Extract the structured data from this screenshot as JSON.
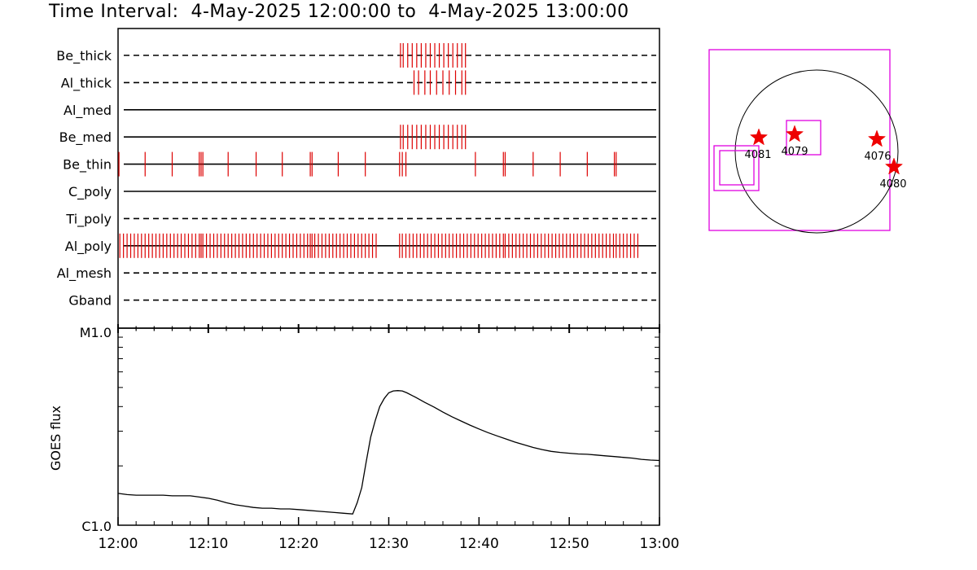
{
  "header": {
    "title": "Time Interval:  4-May-2025 12:00:00 to  4-May-2025 13:00:00"
  },
  "colors": {
    "event_mark": "#dd0000",
    "box": "#e000e0",
    "star": "#ee0000",
    "axis": "#000000"
  },
  "chart_data": [
    {
      "type": "timeline",
      "name": "filter-timeline",
      "x_range_minutes": [
        0,
        60
      ],
      "rows": [
        {
          "label": "Be_thick",
          "style": "dashed",
          "events": [
            31.3,
            31.6,
            32.1,
            32.6,
            33.1,
            33.6,
            34.1,
            34.6,
            35.1,
            35.6,
            36.1,
            36.6,
            37.1,
            37.6,
            38.1,
            38.5
          ]
        },
        {
          "label": "Al_thick",
          "style": "dashed",
          "events": [
            32.8,
            33.3,
            34.0,
            34.6,
            35.3,
            36.0,
            36.7,
            37.4,
            38.1,
            38.5
          ]
        },
        {
          "label": "Al_med",
          "style": "solid",
          "events": []
        },
        {
          "label": "Be_med",
          "style": "solid",
          "events": [
            31.3,
            31.6,
            32.1,
            32.6,
            33.1,
            33.6,
            34.1,
            34.6,
            35.1,
            35.6,
            36.1,
            36.6,
            37.1,
            37.6,
            38.1,
            38.5
          ]
        },
        {
          "label": "Be_thin",
          "style": "solid",
          "events": [
            0.1,
            3.0,
            6.0,
            9.0,
            9.2,
            9.4,
            12.2,
            15.3,
            18.2,
            21.3,
            21.5,
            24.4,
            27.4,
            31.2,
            31.5,
            31.9,
            39.6,
            42.7,
            42.9,
            46.0,
            49.0,
            52.0,
            55.0,
            55.2
          ]
        },
        {
          "label": "C_poly",
          "style": "solid",
          "events": []
        },
        {
          "label": "Ti_poly",
          "style": "dashed",
          "events": []
        },
        {
          "label": "Al_poly",
          "style": "solid",
          "events": [
            0.2,
            0.6,
            1.0,
            1.4,
            1.8,
            2.2,
            2.6,
            3.0,
            3.4,
            3.8,
            4.2,
            4.6,
            5.0,
            5.4,
            5.8,
            6.2,
            6.6,
            7.0,
            7.4,
            7.8,
            8.2,
            8.6,
            9.0,
            9.2,
            9.4,
            9.8,
            10.2,
            10.6,
            11.0,
            11.4,
            11.8,
            12.2,
            12.6,
            13.0,
            13.4,
            13.8,
            14.2,
            14.6,
            15.0,
            15.4,
            15.8,
            16.2,
            16.6,
            17.0,
            17.4,
            17.8,
            18.2,
            18.6,
            19.0,
            19.4,
            19.8,
            20.2,
            20.6,
            21.0,
            21.3,
            21.5,
            21.8,
            22.2,
            22.6,
            23.0,
            23.4,
            23.8,
            24.2,
            24.6,
            25.0,
            25.4,
            25.8,
            26.2,
            26.6,
            27.0,
            27.4,
            27.8,
            28.2,
            28.6,
            31.2,
            31.5,
            31.9,
            32.3,
            32.7,
            33.1,
            33.5,
            33.9,
            34.3,
            34.7,
            35.1,
            35.5,
            35.9,
            36.3,
            36.7,
            37.1,
            37.5,
            37.9,
            38.3,
            38.7,
            39.1,
            39.5,
            39.9,
            40.3,
            40.7,
            41.1,
            41.5,
            41.9,
            42.3,
            42.7,
            42.9,
            43.3,
            43.7,
            44.1,
            44.5,
            44.9,
            45.3,
            45.7,
            46.1,
            46.5,
            46.9,
            47.3,
            47.7,
            48.1,
            48.5,
            48.9,
            49.3,
            49.7,
            50.1,
            50.5,
            50.9,
            51.3,
            51.7,
            52.1,
            52.5,
            52.9,
            53.3,
            53.7,
            54.1,
            54.5,
            54.9,
            55.2,
            55.6,
            56.0,
            56.4,
            56.8,
            57.2,
            57.6
          ]
        },
        {
          "label": "Al_mesh",
          "style": "dashed",
          "events": []
        },
        {
          "label": "Gband",
          "style": "dashed",
          "events": []
        }
      ]
    },
    {
      "type": "line",
      "name": "goes-flux",
      "ylabel": "GOES flux",
      "y_scale": "log",
      "ylim": [
        "C1.0",
        "M1.0"
      ],
      "y_top_label": "M1.0",
      "y_bottom_label": "C1.0",
      "xlabel_ticks": [
        "12:00",
        "12:10",
        "12:20",
        "12:30",
        "12:40",
        "12:50",
        "13:00"
      ],
      "xlim_minutes": [
        0,
        60
      ],
      "x_minutes": [
        0,
        1,
        2,
        3,
        4,
        5,
        6,
        7,
        8,
        9,
        10,
        11,
        12,
        13,
        14,
        15,
        16,
        17,
        18,
        19,
        20,
        21,
        22,
        23,
        24,
        25,
        26,
        26.5,
        27,
        27.5,
        28,
        28.5,
        29,
        29.5,
        30,
        30.5,
        31,
        31.5,
        32,
        33,
        34,
        35,
        36,
        37,
        38,
        39,
        40,
        41,
        42,
        43,
        44,
        45,
        46,
        47,
        48,
        49,
        50,
        51,
        52,
        53,
        54,
        55,
        56,
        57,
        58,
        59,
        60
      ],
      "y_flux": [
        1.45,
        1.43,
        1.42,
        1.42,
        1.42,
        1.42,
        1.41,
        1.41,
        1.41,
        1.39,
        1.37,
        1.34,
        1.3,
        1.27,
        1.25,
        1.23,
        1.22,
        1.22,
        1.21,
        1.21,
        1.2,
        1.19,
        1.18,
        1.17,
        1.16,
        1.15,
        1.14,
        1.3,
        1.55,
        2.1,
        2.8,
        3.4,
        4.0,
        4.4,
        4.7,
        4.8,
        4.82,
        4.8,
        4.7,
        4.45,
        4.2,
        3.98,
        3.75,
        3.55,
        3.38,
        3.22,
        3.08,
        2.95,
        2.84,
        2.74,
        2.64,
        2.56,
        2.48,
        2.42,
        2.37,
        2.34,
        2.32,
        2.3,
        2.29,
        2.27,
        2.25,
        2.23,
        2.21,
        2.19,
        2.16,
        2.14,
        2.13
      ]
    },
    {
      "type": "diagram",
      "name": "solar-disk-map",
      "regions": [
        {
          "label": "4081",
          "kind": "star"
        },
        {
          "label": "4079",
          "kind": "star"
        },
        {
          "label": "4076",
          "kind": "star"
        },
        {
          "label": "4080",
          "kind": "star"
        }
      ]
    }
  ]
}
